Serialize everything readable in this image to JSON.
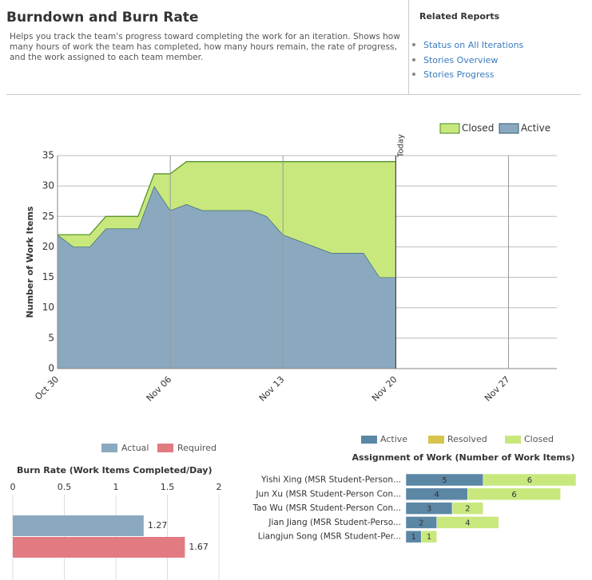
{
  "header": {
    "title": "Burndown and Burn Rate",
    "description": "Helps you track the team's progress toward completing the work for an iteration. Shows how many hours of work the team has completed, how many hours remain, the rate of progress, and the work assigned to each team member.",
    "related_title": "Related Reports",
    "related_links": [
      "Status on All Iterations",
      "Stories Overview",
      "Stories Progress"
    ]
  },
  "chart_data": [
    {
      "type": "area",
      "stacked": true,
      "ylabel": "Number of Work Items",
      "x": [
        0,
        1,
        2,
        3,
        4,
        5,
        6,
        7,
        8,
        9,
        10,
        11,
        12,
        13,
        14,
        15,
        16,
        17,
        18,
        19,
        20,
        21
      ],
      "series": [
        {
          "name": "Active",
          "color": "#8aa9bf",
          "line_color": "#2d5a6f",
          "values": [
            22,
            20,
            20,
            23,
            23,
            23,
            30,
            26,
            27,
            26,
            26,
            26,
            26,
            25,
            22,
            21,
            20,
            19,
            19,
            19,
            15,
            15
          ]
        },
        {
          "name": "Closed",
          "color": "#c8e87e",
          "line_color": "#4a8a1e",
          "values": [
            0,
            2,
            2,
            2,
            2,
            2,
            2,
            6,
            7,
            8,
            8,
            8,
            8,
            9,
            12,
            13,
            14,
            15,
            15,
            15,
            19,
            19
          ]
        }
      ],
      "xlim": [
        0,
        31
      ],
      "xticks": [
        {
          "value": 0,
          "label": "Oct 30"
        },
        {
          "value": 7,
          "label": "Nov 06"
        },
        {
          "value": 14,
          "label": "Nov 13"
        },
        {
          "value": 21,
          "label": "Nov 20"
        },
        {
          "value": 28,
          "label": "Nov 27"
        }
      ],
      "ylim": [
        0,
        35
      ],
      "yticks": [
        0,
        5,
        10,
        15,
        20,
        25,
        30,
        35
      ],
      "grid": true,
      "annotation": {
        "text": "Today",
        "x": 21
      },
      "legend": "top-right"
    },
    {
      "type": "bar",
      "orientation": "horizontal",
      "stacked": false,
      "title": "Burn Rate (Work Items Completed/Day)",
      "series": [
        {
          "name": "Actual",
          "color": "#8aa9bf",
          "values": [
            1.27
          ]
        },
        {
          "name": "Required",
          "color": "#e27a82",
          "values": [
            1.67
          ]
        }
      ],
      "xlim": [
        0,
        2
      ],
      "xticks": [
        0,
        0.5,
        1,
        1.5,
        2
      ],
      "grid": true,
      "legend": "top"
    },
    {
      "type": "bar",
      "orientation": "horizontal",
      "stacked": true,
      "title": "Assignment of Work (Number of Work Items)",
      "categories": [
        "Yishi Xing (MSR Student-Person...",
        "Jun Xu (MSR Student-Person Con...",
        "Tao Wu (MSR Student-Person Con...",
        "Jian Jiang (MSR Student-Perso...",
        "Liangjun Song (MSR Student-Per..."
      ],
      "series": [
        {
          "name": "Active",
          "color": "#5b87a5",
          "values": [
            5,
            4,
            3,
            2,
            1
          ]
        },
        {
          "name": "Resolved",
          "color": "#d6c44c",
          "values": [
            0,
            0,
            0,
            0,
            0
          ]
        },
        {
          "name": "Closed",
          "color": "#c8e87e",
          "values": [
            6,
            6,
            2,
            4,
            1
          ]
        }
      ],
      "legend": "top"
    }
  ]
}
